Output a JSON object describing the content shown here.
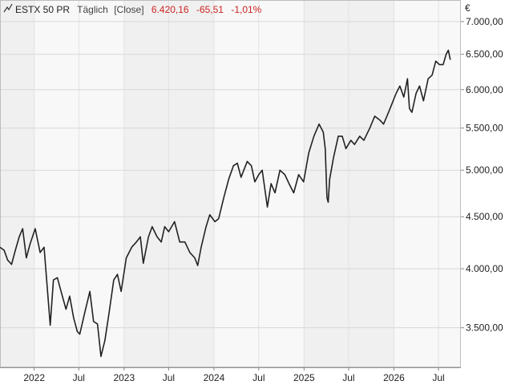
{
  "chart_data": {
    "type": "line",
    "legend": {
      "icon": "line-chart-icon",
      "name": "ESTX 50 PR",
      "interval": "Täglich",
      "mode": "[Close]",
      "last_value": "6.420,16",
      "change": "-65,51",
      "change_percent": "-1,01%",
      "change_color": "#cc2222"
    },
    "currency_symbol": "€",
    "y_scale": "log",
    "ylim": [
      3200,
      7350
    ],
    "y_ticks": [
      {
        "value": 3500,
        "label": "3.500,00"
      },
      {
        "value": 4000,
        "label": "4.000,00"
      },
      {
        "value": 4500,
        "label": "4.500,00"
      },
      {
        "value": 5000,
        "label": "5.000,00"
      },
      {
        "value": 5500,
        "label": "5.500,00"
      },
      {
        "value": 6000,
        "label": "6.000,00"
      },
      {
        "value": 6500,
        "label": "6.500,00"
      },
      {
        "value": 7000,
        "label": "7.000,00"
      }
    ],
    "xlim": [
      "2021-08-15",
      "2026-09-30"
    ],
    "x_ticks": [
      {
        "date": "2022-01-01",
        "label": "2022"
      },
      {
        "date": "2022-07-01",
        "label": "Jul"
      },
      {
        "date": "2023-01-01",
        "label": "2023"
      },
      {
        "date": "2023-07-01",
        "label": "Jul"
      },
      {
        "date": "2024-01-01",
        "label": "2024"
      },
      {
        "date": "2024-07-01",
        "label": "Jul"
      },
      {
        "date": "2025-01-01",
        "label": "2025"
      },
      {
        "date": "2025-07-01",
        "label": "Jul"
      },
      {
        "date": "2026-01-01",
        "label": "2026"
      },
      {
        "date": "2026-07-01",
        "label": "Jul"
      }
    ],
    "grid": true,
    "line_color": "#222222",
    "series": [
      {
        "values": [
          [
            "2021-08-15",
            4200
          ],
          [
            "2021-09-01",
            4170
          ],
          [
            "2021-09-15",
            4080
          ],
          [
            "2021-10-01",
            4040
          ],
          [
            "2021-10-15",
            4160
          ],
          [
            "2021-11-01",
            4300
          ],
          [
            "2021-11-15",
            4380
          ],
          [
            "2021-11-30",
            4100
          ],
          [
            "2021-12-15",
            4230
          ],
          [
            "2022-01-05",
            4380
          ],
          [
            "2022-01-25",
            4150
          ],
          [
            "2022-02-10",
            4200
          ],
          [
            "2022-03-07",
            3520
          ],
          [
            "2022-03-20",
            3900
          ],
          [
            "2022-04-05",
            3920
          ],
          [
            "2022-04-20",
            3800
          ],
          [
            "2022-05-10",
            3650
          ],
          [
            "2022-05-25",
            3760
          ],
          [
            "2022-06-10",
            3580
          ],
          [
            "2022-06-25",
            3470
          ],
          [
            "2022-07-05",
            3450
          ],
          [
            "2022-07-25",
            3620
          ],
          [
            "2022-08-15",
            3800
          ],
          [
            "2022-08-30",
            3550
          ],
          [
            "2022-09-15",
            3530
          ],
          [
            "2022-09-29",
            3280
          ],
          [
            "2022-10-15",
            3400
          ],
          [
            "2022-11-01",
            3620
          ],
          [
            "2022-11-20",
            3900
          ],
          [
            "2022-12-05",
            3950
          ],
          [
            "2022-12-20",
            3800
          ],
          [
            "2023-01-10",
            4100
          ],
          [
            "2023-02-01",
            4200
          ],
          [
            "2023-02-20",
            4250
          ],
          [
            "2023-03-08",
            4300
          ],
          [
            "2023-03-20",
            4050
          ],
          [
            "2023-04-10",
            4300
          ],
          [
            "2023-04-25",
            4400
          ],
          [
            "2023-05-15",
            4300
          ],
          [
            "2023-06-01",
            4250
          ],
          [
            "2023-06-15",
            4400
          ],
          [
            "2023-07-01",
            4350
          ],
          [
            "2023-07-25",
            4450
          ],
          [
            "2023-08-15",
            4250
          ],
          [
            "2023-09-05",
            4250
          ],
          [
            "2023-09-25",
            4150
          ],
          [
            "2023-10-15",
            4100
          ],
          [
            "2023-10-27",
            4030
          ],
          [
            "2023-11-10",
            4200
          ],
          [
            "2023-11-30",
            4400
          ],
          [
            "2023-12-15",
            4520
          ],
          [
            "2024-01-05",
            4450
          ],
          [
            "2024-01-20",
            4480
          ],
          [
            "2024-02-10",
            4700
          ],
          [
            "2024-03-01",
            4900
          ],
          [
            "2024-03-20",
            5050
          ],
          [
            "2024-04-05",
            5080
          ],
          [
            "2024-04-20",
            4920
          ],
          [
            "2024-05-15",
            5100
          ],
          [
            "2024-06-01",
            5050
          ],
          [
            "2024-06-15",
            4870
          ],
          [
            "2024-07-01",
            4950
          ],
          [
            "2024-07-15",
            5000
          ],
          [
            "2024-08-05",
            4600
          ],
          [
            "2024-08-20",
            4850
          ],
          [
            "2024-09-05",
            4750
          ],
          [
            "2024-09-25",
            5000
          ],
          [
            "2024-10-15",
            4950
          ],
          [
            "2024-11-01",
            4850
          ],
          [
            "2024-11-20",
            4750
          ],
          [
            "2024-12-10",
            4950
          ],
          [
            "2024-12-30",
            4870
          ],
          [
            "2025-01-20",
            5200
          ],
          [
            "2025-02-10",
            5400
          ],
          [
            "2025-03-03",
            5550
          ],
          [
            "2025-03-20",
            5450
          ],
          [
            "2025-03-28",
            5250
          ],
          [
            "2025-04-04",
            4700
          ],
          [
            "2025-04-09",
            4650
          ],
          [
            "2025-04-15",
            4900
          ],
          [
            "2025-05-01",
            5150
          ],
          [
            "2025-05-20",
            5400
          ],
          [
            "2025-06-05",
            5400
          ],
          [
            "2025-06-20",
            5250
          ],
          [
            "2025-07-10",
            5350
          ],
          [
            "2025-07-25",
            5300
          ],
          [
            "2025-08-15",
            5400
          ],
          [
            "2025-09-01",
            5350
          ],
          [
            "2025-09-25",
            5500
          ],
          [
            "2025-10-15",
            5650
          ],
          [
            "2025-11-05",
            5600
          ],
          [
            "2025-11-20",
            5550
          ],
          [
            "2025-12-10",
            5700
          ],
          [
            "2026-01-10",
            5950
          ],
          [
            "2026-01-25",
            6050
          ],
          [
            "2026-02-10",
            5900
          ],
          [
            "2026-02-25",
            6150
          ],
          [
            "2026-03-05",
            5750
          ],
          [
            "2026-03-15",
            5700
          ],
          [
            "2026-04-01",
            5950
          ],
          [
            "2026-04-15",
            6050
          ],
          [
            "2026-05-01",
            5850
          ],
          [
            "2026-05-20",
            6150
          ],
          [
            "2026-06-05",
            6200
          ],
          [
            "2026-06-20",
            6400
          ],
          [
            "2026-07-05",
            6350
          ],
          [
            "2026-07-20",
            6350
          ],
          [
            "2026-08-01",
            6500
          ],
          [
            "2026-08-10",
            6560
          ],
          [
            "2026-08-18",
            6420
          ]
        ]
      }
    ]
  }
}
